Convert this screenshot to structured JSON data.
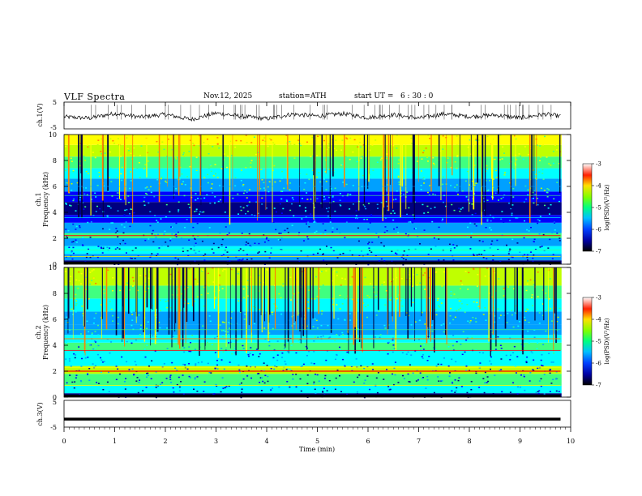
{
  "header": {
    "title": "VLF  Spectra",
    "date": "Nov.12, 2025",
    "station": "station=ATH",
    "start_label": "start  UT  =",
    "start_time": "6  : 30 : 0"
  },
  "colors": {
    "colormap": [
      "#000080",
      "#0000ff",
      "#00a0ff",
      "#00ffff",
      "#40ff80",
      "#c0ff00",
      "#ffff00",
      "#ff8000",
      "#ff0000",
      "#ffffff"
    ],
    "trace": "#000000"
  },
  "chart_data": [
    {
      "type": "line",
      "panel": "ch1-waveform",
      "ylabel": "ch.1(V)",
      "yticks": [
        "5",
        "-5"
      ],
      "ylim": [
        -5,
        5
      ],
      "x": [
        0,
        0.5,
        1,
        1.5,
        2,
        2.5,
        3,
        3.5,
        4,
        4.5,
        5,
        5.5,
        6,
        6.5,
        7,
        7.5,
        8,
        8.5,
        9,
        9.5,
        9.8
      ],
      "values": [
        -0.5,
        -1.0,
        0.8,
        -0.6,
        0.4,
        -1.5,
        0.9,
        -0.3,
        -1.2,
        0.5,
        -0.2,
        0.7,
        -0.8,
        0.3,
        -1.0,
        0.6,
        -0.4,
        0.2,
        -0.9,
        0.5,
        -0.3
      ]
    },
    {
      "type": "heatmap",
      "panel": "ch1-spectrogram",
      "ylabel": "ch.1",
      "ylabel2": "Frequency  (kHz)",
      "xlim": [
        0,
        10
      ],
      "ylim": [
        0,
        10
      ],
      "yticks": [
        "0",
        "2",
        "4",
        "6",
        "8",
        "10"
      ],
      "colorbar_label": "log(PSD)(V²/Hz)",
      "colorbar_ticks": [
        "-3",
        "-4",
        "-5",
        "-6",
        "-7"
      ],
      "colorbar_range": [
        -7,
        -3
      ]
    },
    {
      "type": "heatmap",
      "panel": "ch2-spectrogram",
      "ylabel": "ch.2",
      "ylabel2": "Frequency  (kHz)",
      "xlim": [
        0,
        10
      ],
      "ylim": [
        0,
        10
      ],
      "yticks": [
        "0",
        "2",
        "4",
        "6",
        "8",
        "10"
      ],
      "colorbar_label": "log(PSD)(V²/Hz)",
      "colorbar_ticks": [
        "-3",
        "-4",
        "-5",
        "-6",
        "-7"
      ],
      "colorbar_range": [
        -7,
        -3
      ]
    },
    {
      "type": "line",
      "panel": "ch3-waveform",
      "ylabel": "ch.3(V)",
      "yticks": [
        "5",
        "-5"
      ],
      "ylim": [
        -5,
        5
      ],
      "x": [
        0,
        9.8
      ],
      "values": [
        -2,
        -2
      ]
    }
  ],
  "x_axis": {
    "label": "Time  (min)",
    "ticks": [
      "0",
      "1",
      "2",
      "3",
      "4",
      "5",
      "6",
      "7",
      "8",
      "9",
      "10"
    ],
    "xlim": [
      0,
      10
    ]
  }
}
